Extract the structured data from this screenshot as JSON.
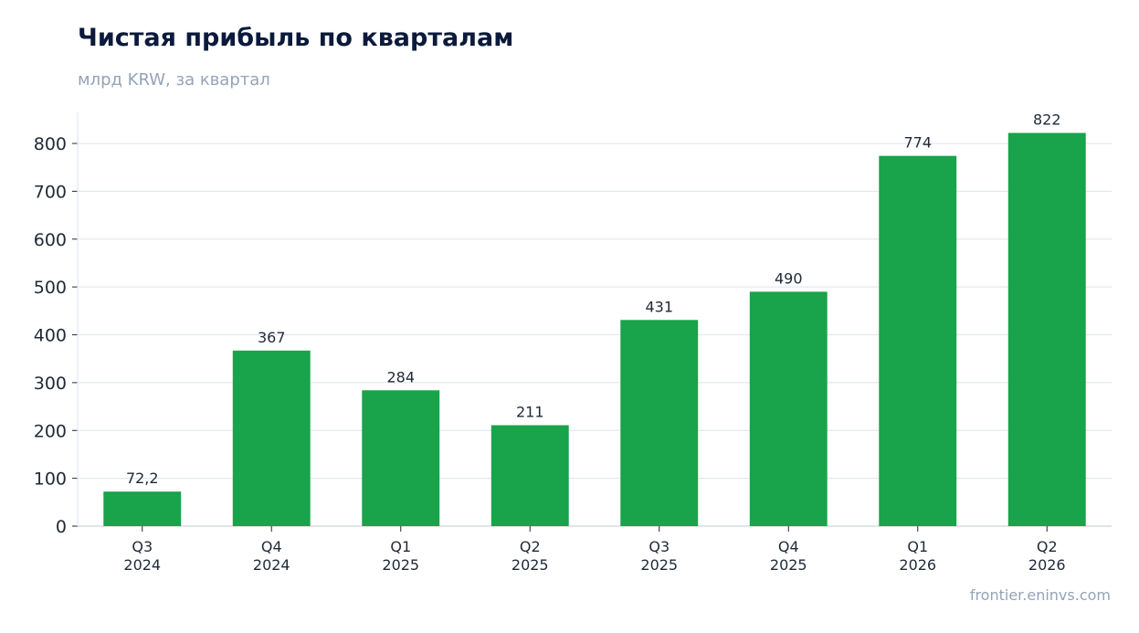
{
  "chart_data": {
    "type": "bar",
    "title": "Чистая прибыль по кварталам",
    "subtitle": "млрд KRW, за квартал",
    "categories": [
      [
        "Q3",
        "2024"
      ],
      [
        "Q4",
        "2024"
      ],
      [
        "Q1",
        "2025"
      ],
      [
        "Q2",
        "2025"
      ],
      [
        "Q3",
        "2025"
      ],
      [
        "Q4",
        "2025"
      ],
      [
        "Q1",
        "2026"
      ],
      [
        "Q2",
        "2026"
      ]
    ],
    "values": [
      72.2,
      367,
      284,
      211,
      431,
      490,
      774,
      822
    ],
    "value_labels": [
      "72,2",
      "367",
      "284",
      "211",
      "431",
      "490",
      "774",
      "822"
    ],
    "yticks": [
      0,
      100,
      200,
      300,
      400,
      500,
      600,
      700,
      800
    ],
    "ylim": [
      0,
      865
    ],
    "grid": true,
    "color": "#19a34a"
  },
  "footer": "frontier.eninvs.com"
}
